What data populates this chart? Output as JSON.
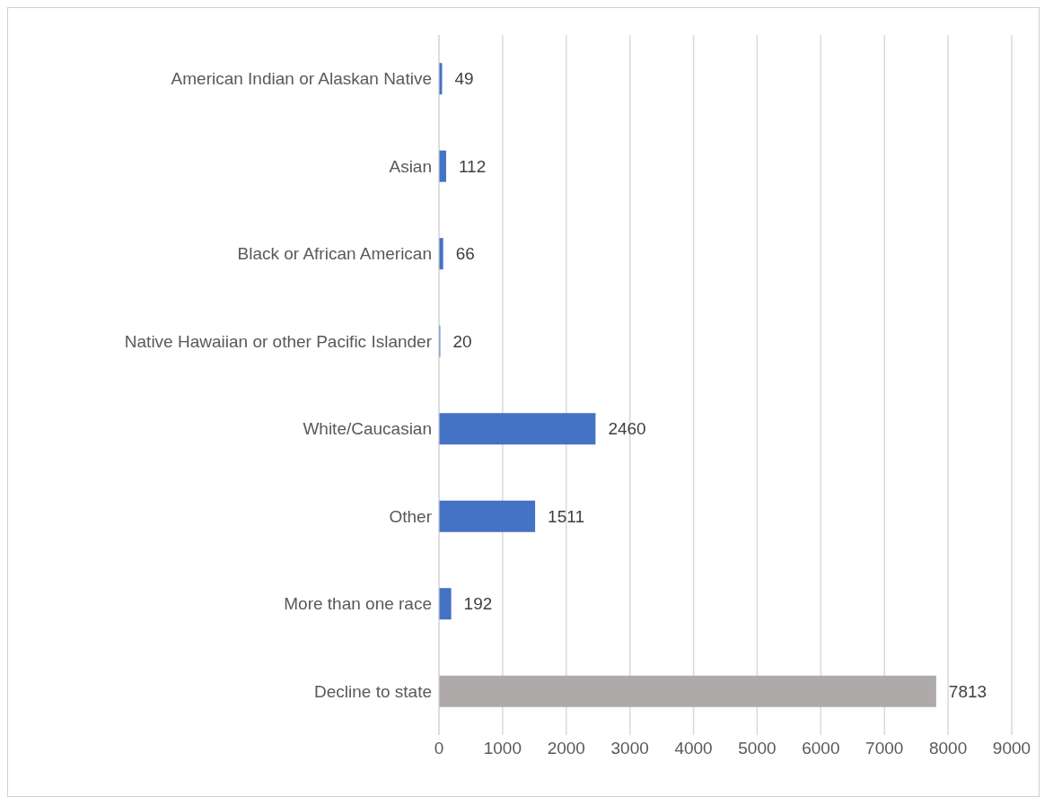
{
  "chart_data": {
    "type": "bar",
    "orientation": "horizontal",
    "categories": [
      "American Indian or Alaskan Native",
      "Asian",
      "Black or African American",
      "Native Hawaiian or other Pacific Islander",
      "White/Caucasian",
      "Other",
      "More than one race",
      "Decline to state"
    ],
    "values": [
      49,
      112,
      66,
      20,
      2460,
      1511,
      192,
      7813
    ],
    "colors": [
      "#4472c4",
      "#4472c4",
      "#4472c4",
      "#4472c4",
      "#4472c4",
      "#4472c4",
      "#4472c4",
      "#aeaaaa"
    ],
    "xlim": [
      0,
      9000
    ],
    "xticks": [
      0,
      1000,
      2000,
      3000,
      4000,
      5000,
      6000,
      7000,
      8000,
      9000
    ],
    "grid": "x",
    "data_labels": true
  }
}
